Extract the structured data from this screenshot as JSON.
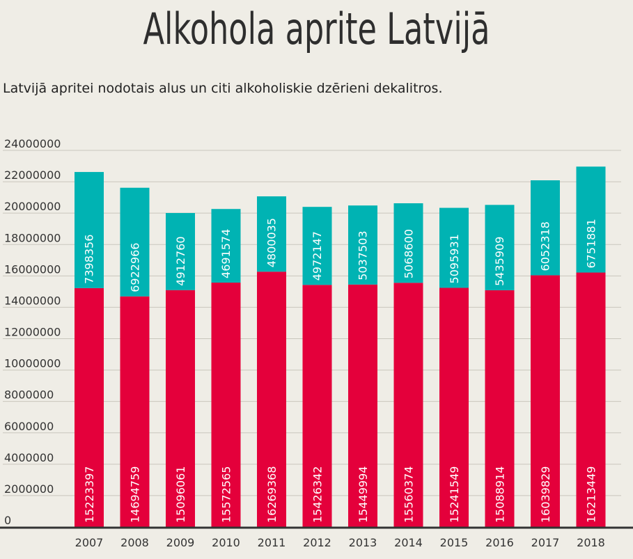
{
  "title": "Alkohola aprite Latvijā",
  "subtitle": "Latvijā apritei nodotais alus un citi alkoholiskie dzērieni dekalitros.",
  "colors": {
    "background": "#efede6",
    "lower": "#e4003b",
    "upper": "#00b3b3",
    "grid": "#c9c6bd",
    "axis": "#333333"
  },
  "chart_data": {
    "type": "bar",
    "stacked": true,
    "title": "Alkohola aprite Latvijā",
    "subtitle": "Latvijā apritei nodotais alus un citi alkoholiskie dzērieni dekalitros.",
    "categories": [
      "2007",
      "2008",
      "2009",
      "2010",
      "2011",
      "2012",
      "2013",
      "2014",
      "2015",
      "2016",
      "2017",
      "2018"
    ],
    "series": [
      {
        "color": "#e4003b",
        "values": [
          15223397,
          14694759,
          15096061,
          15572565,
          16269368,
          15426342,
          15449994,
          15560374,
          15241549,
          15088914,
          16039829,
          16213449
        ]
      },
      {
        "color": "#00b3b3",
        "values": [
          7398356,
          6922966,
          4912760,
          4691574,
          4800035,
          4972147,
          5037503,
          5068600,
          5095931,
          5435909,
          6052318,
          6751881
        ]
      }
    ],
    "ylim": [
      0,
      24000000
    ],
    "yticks": [
      "0",
      "2000000",
      "4000000",
      "6000000",
      "8000000",
      "10000000",
      "12000000",
      "14000000",
      "16000000",
      "18000000",
      "20000000",
      "22000000",
      "24000000"
    ],
    "grid": true,
    "data_labels": "inside-rotated"
  }
}
